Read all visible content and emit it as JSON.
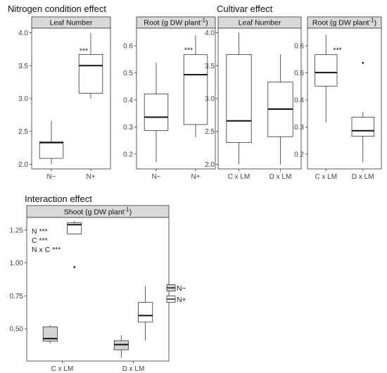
{
  "sections": {
    "nitrogen": "Nitrogen condition effect",
    "cultivar": "Cultivar effect",
    "interaction": "Interaction effect"
  },
  "legend": [
    {
      "label": "N−",
      "fill": "#d3d3d3"
    },
    {
      "label": "N+",
      "fill": "#ffffff"
    }
  ],
  "chart_data": [
    {
      "id": "nitrogen-leaf",
      "type": "box",
      "title": "Leaf Number",
      "categories": [
        "N−",
        "N+"
      ],
      "ylim": [
        1.93,
        4.07
      ],
      "yticks": [
        2.0,
        2.5,
        3.0,
        3.5,
        4.0
      ],
      "ytick_labels": [
        "2.0",
        "2.5",
        "3.0",
        "3.5",
        "4.0"
      ],
      "boxes": [
        {
          "category": "N−",
          "min": 2.0,
          "q1": 2.09,
          "median": 2.33,
          "q3": 2.34,
          "max": 2.66,
          "outliers": [],
          "fill": "#ffffff"
        },
        {
          "category": "N+",
          "min": 3.0,
          "q1": 3.08,
          "median": 3.5,
          "q3": 3.67,
          "max": 4.0,
          "outliers": [],
          "fill": "#ffffff"
        }
      ],
      "annotations": [
        {
          "text": "***",
          "x_category": 1,
          "y": 3.67
        }
      ]
    },
    {
      "id": "nitrogen-root",
      "type": "box",
      "title": "Root (g DW plant",
      "title_sup": "-1",
      "title_end": ")",
      "categories": [
        "N−",
        "N+"
      ],
      "ylim": [
        0.145,
        0.665
      ],
      "yticks": [
        0.2,
        0.3,
        0.4,
        0.5,
        0.6
      ],
      "ytick_labels": [
        "0.2",
        "0.3",
        "0.4",
        "0.5",
        "0.6"
      ],
      "boxes": [
        {
          "category": "N−",
          "min": 0.17,
          "q1": 0.287,
          "median": 0.336,
          "q3": 0.422,
          "max": 0.537,
          "outliers": [],
          "fill": "#ffffff"
        },
        {
          "category": "N+",
          "min": 0.262,
          "q1": 0.309,
          "median": 0.493,
          "q3": 0.567,
          "max": 0.64,
          "outliers": [],
          "fill": "#ffffff"
        }
      ],
      "annotations": [
        {
          "text": "***",
          "x_category": 1,
          "y": 0.57
        }
      ]
    },
    {
      "id": "cultivar-leaf",
      "type": "box",
      "title": "Leaf Number",
      "categories": [
        "C x LM",
        "D x LM"
      ],
      "ylim": [
        1.93,
        4.07
      ],
      "yticks": [
        2.0,
        2.5,
        3.0,
        3.5,
        4.0
      ],
      "ytick_labels": [
        "2.0",
        "2.5",
        "3.0",
        "3.5",
        "4.0"
      ],
      "boxes": [
        {
          "category": "C x LM",
          "min": 2.0,
          "q1": 2.33,
          "median": 2.66,
          "q3": 3.67,
          "max": 4.0,
          "outliers": [],
          "fill": "#ffffff"
        },
        {
          "category": "D x LM",
          "min": 2.0,
          "q1": 2.42,
          "median": 2.84,
          "q3": 3.25,
          "max": 3.67,
          "outliers": [],
          "fill": "#ffffff"
        }
      ],
      "annotations": []
    },
    {
      "id": "cultivar-root",
      "type": "box",
      "title": "Root (g DW plant",
      "title_sup": "-1",
      "title_end": ")",
      "categories": [
        "C x LM",
        "D x LM"
      ],
      "ylim": [
        0.145,
        0.665
      ],
      "yticks": [
        0.2,
        0.3,
        0.4,
        0.5,
        0.6
      ],
      "ytick_labels": [
        "0.2",
        "0.3",
        "0.4",
        "0.5",
        "0.6"
      ],
      "boxes": [
        {
          "category": "C x LM",
          "min": 0.317,
          "q1": 0.451,
          "median": 0.501,
          "q3": 0.567,
          "max": 0.64,
          "outliers": [],
          "fill": "#ffffff"
        },
        {
          "category": "D x LM",
          "min": 0.17,
          "q1": 0.266,
          "median": 0.286,
          "q3": 0.336,
          "max": 0.355,
          "outliers": [
            0.537
          ],
          "fill": "#ffffff"
        }
      ],
      "annotations": [
        {
          "text": "***",
          "x_category": 0.5,
          "y": 0.57
        }
      ]
    },
    {
      "id": "interaction-shoot",
      "type": "box",
      "title": "Shoot (g DW plant",
      "title_sup": "-1",
      "title_end": ")",
      "categories": [
        "C x LM",
        "D x LM"
      ],
      "ylim": [
        0.255,
        1.345
      ],
      "yticks": [
        0.5,
        0.75,
        1.0,
        1.25
      ],
      "ytick_labels": [
        "0.50",
        "0.75",
        "1.00",
        "1.25"
      ],
      "boxes": [
        {
          "category": "C x LM",
          "offset": -1,
          "min": 0.39,
          "q1": 0.405,
          "median": 0.425,
          "q3": 0.515,
          "max": 0.528,
          "outliers": [],
          "fill": "#d3d3d3"
        },
        {
          "category": "C x LM",
          "offset": 1,
          "min": 1.22,
          "q1": 1.22,
          "median": 1.29,
          "q3": 1.305,
          "max": 1.318,
          "outliers": [
            0.968
          ],
          "fill": "#ffffff"
        },
        {
          "category": "D x LM",
          "offset": -1,
          "min": 0.28,
          "q1": 0.34,
          "median": 0.38,
          "q3": 0.41,
          "max": 0.45,
          "outliers": [],
          "fill": "#d3d3d3"
        },
        {
          "category": "D x LM",
          "offset": 1,
          "min": 0.41,
          "q1": 0.55,
          "median": 0.6,
          "q3": 0.7,
          "max": 0.825,
          "outliers": [],
          "fill": "#ffffff"
        }
      ],
      "annotations": [
        {
          "text": "N ***"
        },
        {
          "text": "C ***"
        },
        {
          "text": "N x C ***"
        }
      ]
    }
  ]
}
